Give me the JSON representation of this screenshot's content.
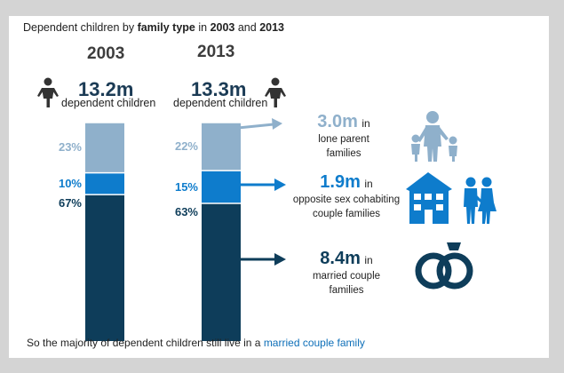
{
  "title": {
    "prefix": "Dependent children by ",
    "emphasis": "family type",
    "middle": " in ",
    "year1": "2003",
    "and": " and ",
    "year2": "2013"
  },
  "columns": [
    {
      "year": "2003",
      "total": "13.2m",
      "label": "dependent children"
    },
    {
      "year": "2013",
      "total": "13.3m",
      "label": "dependent children"
    }
  ],
  "chart_data": {
    "type": "bar",
    "stacked": true,
    "title": "Dependent children by family type in 2003 and 2013",
    "categories": [
      "2003",
      "2013"
    ],
    "series": [
      {
        "name": "Married couple families",
        "values": [
          67,
          63
        ],
        "labels": [
          "67%",
          "63%"
        ],
        "color": "#0e3d5a"
      },
      {
        "name": "Opposite sex cohabiting couple families",
        "values": [
          10,
          15
        ],
        "labels": [
          "10%",
          "15%"
        ],
        "color": "#0e7ccc"
      },
      {
        "name": "Lone parent families",
        "values": [
          23,
          22
        ],
        "labels": [
          "23%",
          "22%"
        ],
        "color": "#8fb0cb"
      }
    ],
    "unit": "%",
    "ylim": [
      0,
      100
    ]
  },
  "stats": [
    {
      "value": "3.0m",
      "in": "in",
      "desc1": "lone parent",
      "desc2": "families",
      "color": "#8fb0cb"
    },
    {
      "value": "1.9m",
      "in": "in",
      "desc1": "opposite sex cohabiting",
      "desc2": "couple families",
      "color": "#0e7ccc"
    },
    {
      "value": "8.4m",
      "in": "in",
      "desc1": "married couple",
      "desc2": "families",
      "color": "#0e3d5a"
    }
  ],
  "footer": {
    "text": "So the majority of dependent children still live in a ",
    "highlight": "married couple family"
  },
  "icons": [
    "child-icon",
    "lone-parent-icon",
    "house-icon",
    "couple-icon",
    "rings-icon"
  ]
}
